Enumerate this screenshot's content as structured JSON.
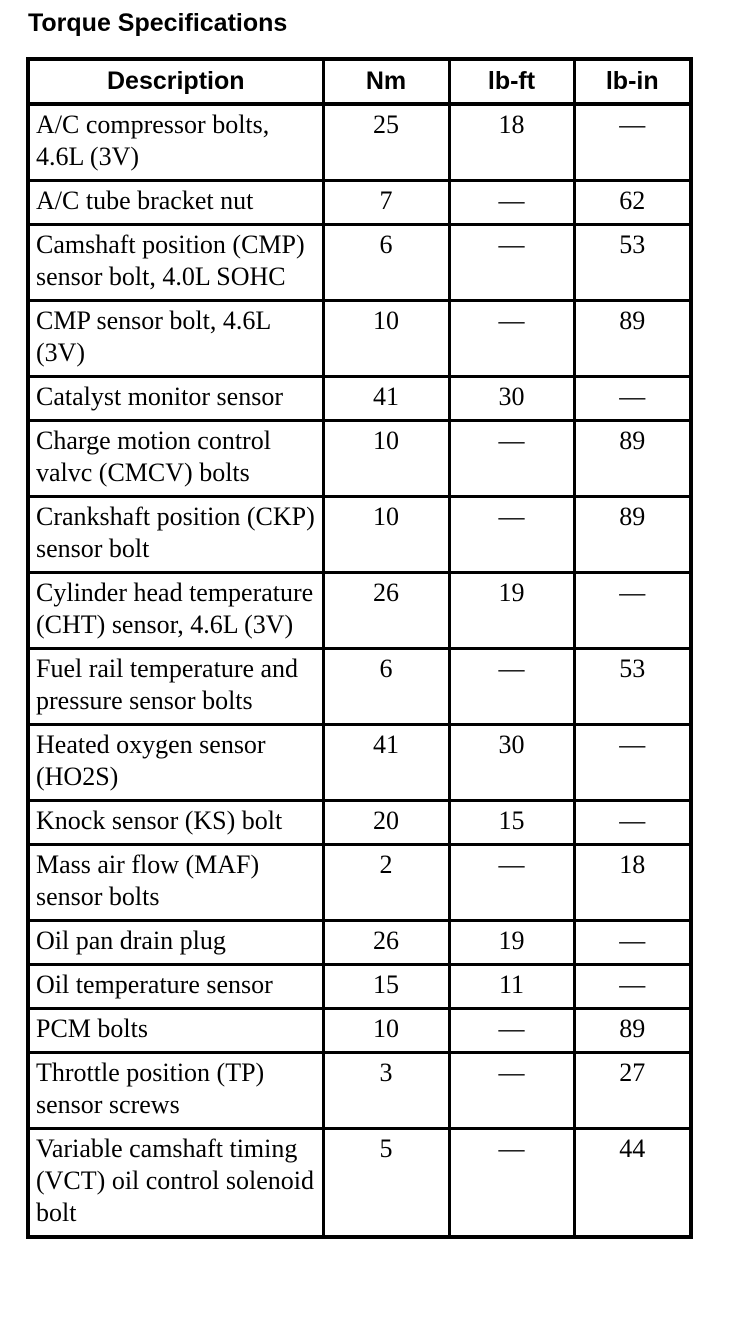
{
  "title": "Torque Specifications",
  "colors": {
    "background": "#ffffff",
    "text": "#000000",
    "border": "#000000"
  },
  "table": {
    "columns": [
      "Description",
      "Nm",
      "lb-ft",
      "lb-in"
    ],
    "rows": [
      {
        "description": "A/C compressor bolts, 4.6L (3V)",
        "nm": "25",
        "lbft": "18",
        "lbin": "—"
      },
      {
        "description": "A/C tube bracket nut",
        "nm": "7",
        "lbft": "—",
        "lbin": "62"
      },
      {
        "description": "Camshaft position (CMP) sensor bolt, 4.0L SOHC",
        "nm": "6",
        "lbft": "—",
        "lbin": "53"
      },
      {
        "description": "CMP sensor bolt, 4.6L (3V)",
        "nm": "10",
        "lbft": "—",
        "lbin": "89"
      },
      {
        "description": "Catalyst monitor sensor",
        "nm": "41",
        "lbft": "30",
        "lbin": "—"
      },
      {
        "description": "Charge motion control valvc (CMCV) bolts",
        "nm": "10",
        "lbft": "—",
        "lbin": "89"
      },
      {
        "description": "Crankshaft position (CKP) sensor bolt",
        "nm": "10",
        "lbft": "—",
        "lbin": "89"
      },
      {
        "description": "Cylinder head temperature (CHT) sensor, 4.6L (3V)",
        "nm": "26",
        "lbft": "19",
        "lbin": "—"
      },
      {
        "description": "Fuel rail temperature and pressure sensor bolts",
        "nm": "6",
        "lbft": "—",
        "lbin": "53"
      },
      {
        "description": "Heated oxygen sensor (HO2S)",
        "nm": "41",
        "lbft": "30",
        "lbin": "—"
      },
      {
        "description": "Knock sensor (KS) bolt",
        "nm": "20",
        "lbft": "15",
        "lbin": "—"
      },
      {
        "description": "Mass air flow (MAF) sensor bolts",
        "nm": "2",
        "lbft": "—",
        "lbin": "18"
      },
      {
        "description": "Oil pan drain plug",
        "nm": "26",
        "lbft": "19",
        "lbin": "—"
      },
      {
        "description": "Oil temperature sensor",
        "nm": "15",
        "lbft": "11",
        "lbin": "—"
      },
      {
        "description": "PCM bolts",
        "nm": "10",
        "lbft": "—",
        "lbin": "89"
      },
      {
        "description": "Throttle position (TP) sensor screws",
        "nm": "3",
        "lbft": "—",
        "lbin": "27"
      },
      {
        "description": "Variable camshaft timing (VCT) oil control solenoid bolt",
        "nm": "5",
        "lbft": "—",
        "lbin": "44"
      }
    ]
  }
}
